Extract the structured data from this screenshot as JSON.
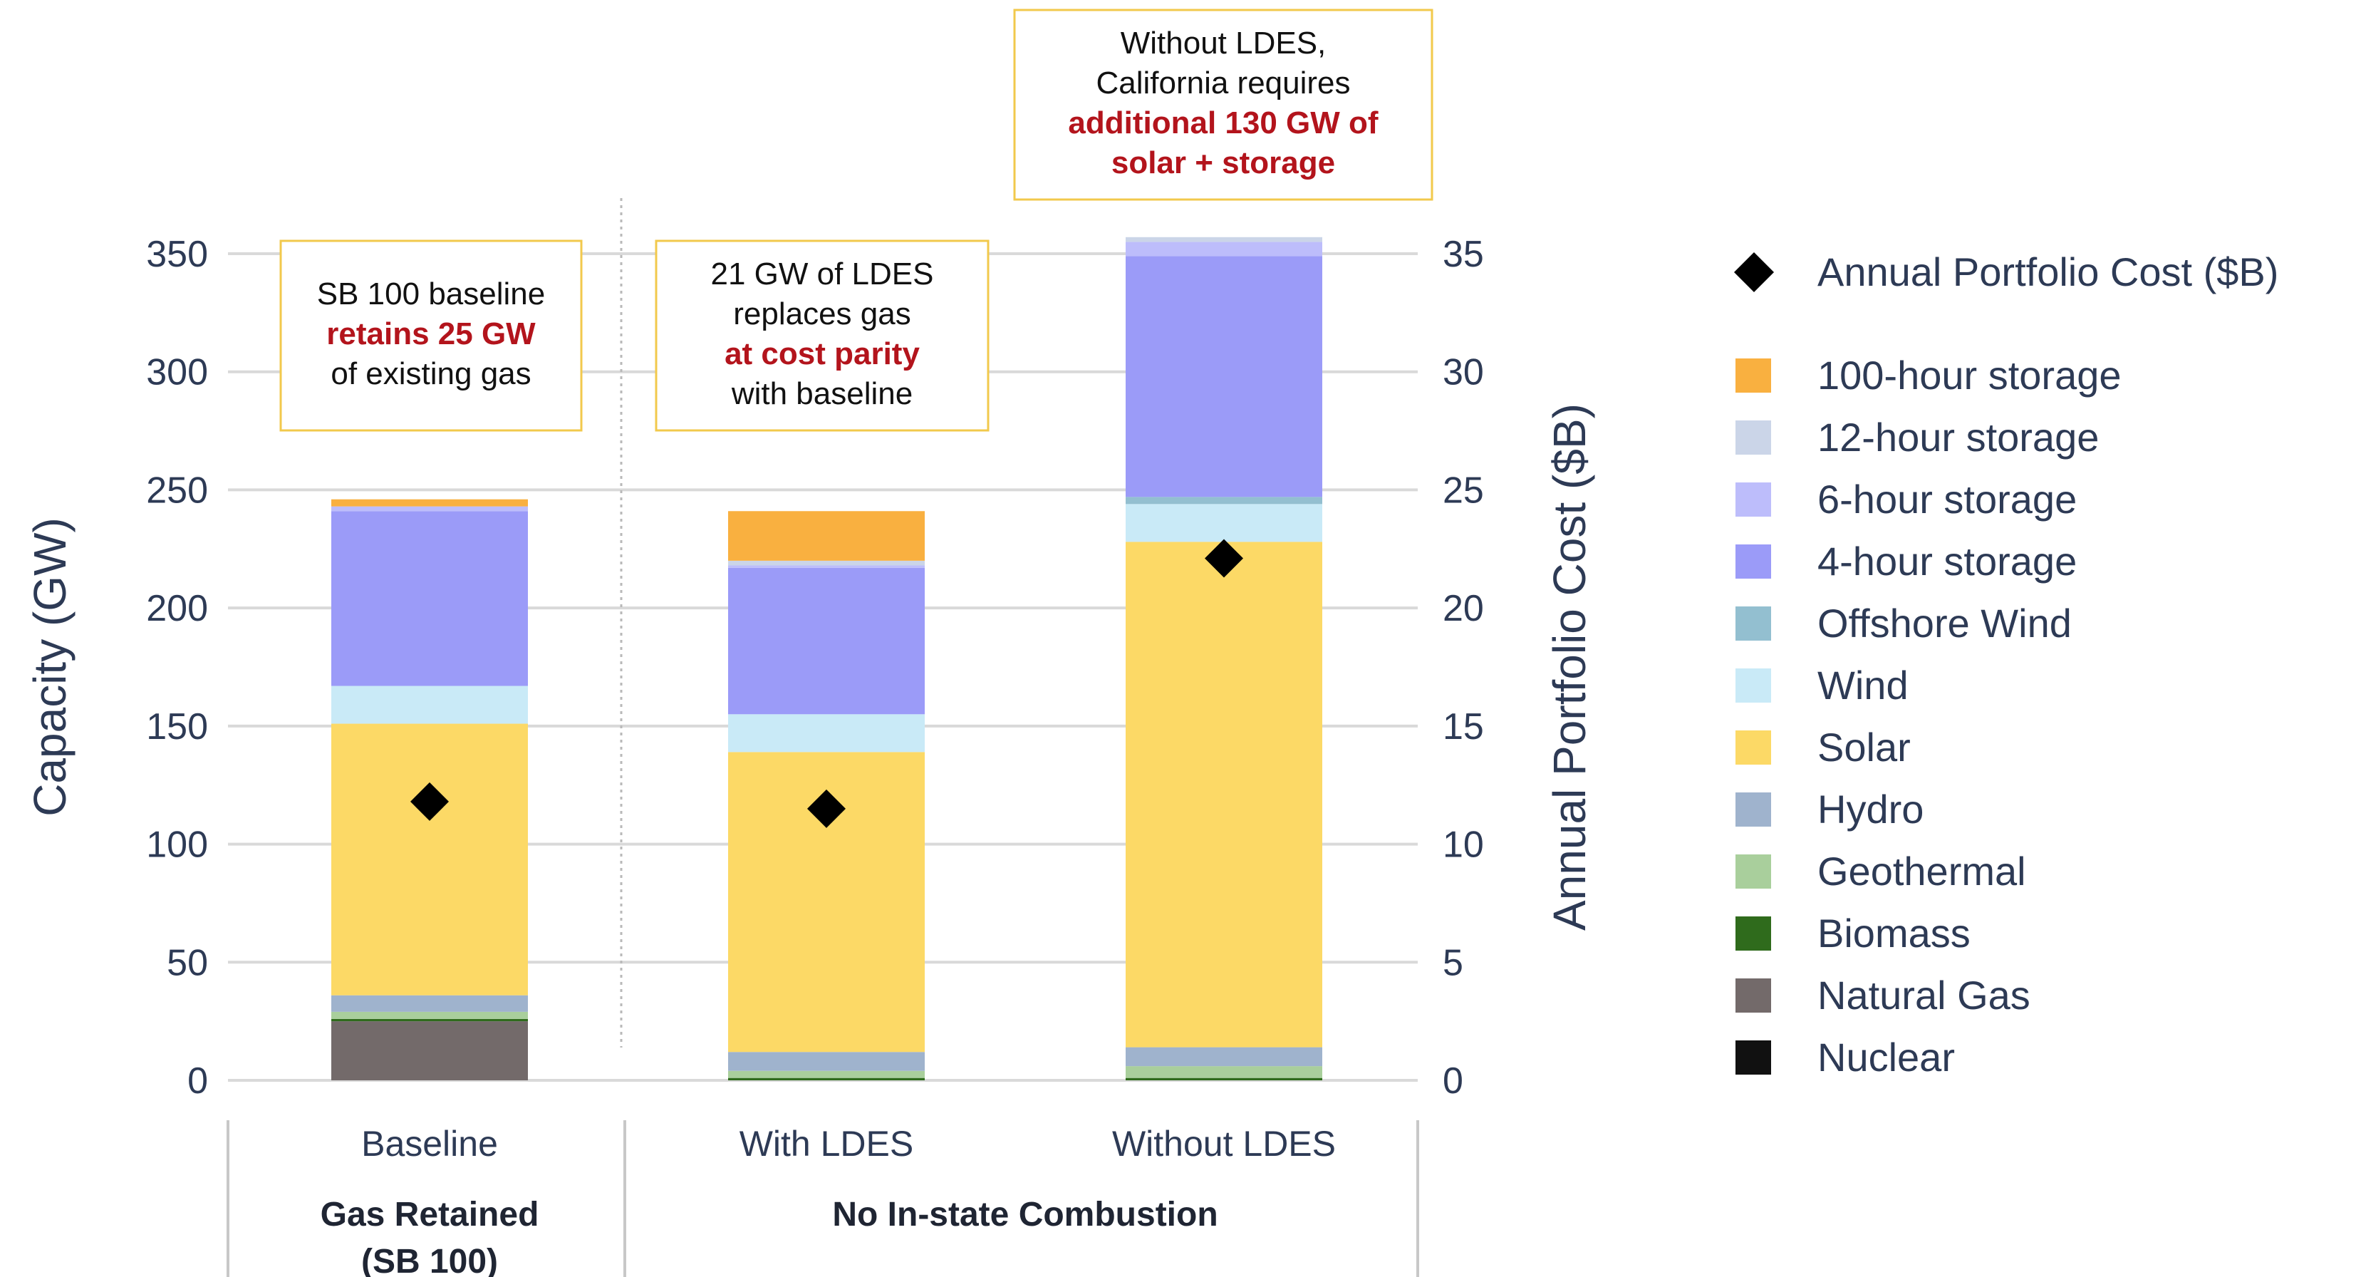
{
  "chart_data": {
    "type": "bar",
    "stacked": true,
    "categories": [
      "Baseline",
      "With LDES",
      "Without LDES"
    ],
    "category_groups": [
      {
        "label_lines": [
          "Gas Retained",
          "(SB 100)"
        ],
        "categories": [
          "Baseline"
        ]
      },
      {
        "label_lines": [
          "No In-state Combustion"
        ],
        "categories": [
          "With LDES",
          "Without LDES"
        ]
      }
    ],
    "series": [
      {
        "name": "Nuclear",
        "color": "#111111",
        "values": [
          0,
          0,
          0
        ]
      },
      {
        "name": "Natural Gas",
        "color": "#736a6a",
        "values": [
          25,
          0,
          0
        ]
      },
      {
        "name": "Biomass",
        "color": "#2f6b1c",
        "values": [
          1,
          1,
          1
        ]
      },
      {
        "name": "Geothermal",
        "color": "#a9cf9c",
        "values": [
          3,
          3,
          5
        ]
      },
      {
        "name": "Hydro",
        "color": "#9fb3cd",
        "values": [
          7,
          8,
          8
        ]
      },
      {
        "name": "Solar",
        "color": "#fcd966",
        "values": [
          115,
          127,
          214
        ]
      },
      {
        "name": "Wind",
        "color": "#c9eaf7",
        "values": [
          16,
          16,
          16
        ]
      },
      {
        "name": "Offshore Wind",
        "color": "#93bfd0",
        "values": [
          0,
          0,
          3
        ]
      },
      {
        "name": "4-hour storage",
        "color": "#9b9bf8",
        "values": [
          74,
          62,
          102
        ]
      },
      {
        "name": "6-hour storage",
        "color": "#bdbdfb",
        "values": [
          2,
          1,
          6
        ]
      },
      {
        "name": "12-hour storage",
        "color": "#cbd5e8",
        "values": [
          0,
          2,
          2
        ]
      },
      {
        "name": "100-hour storage",
        "color": "#f9b040",
        "values": [
          3,
          21,
          0
        ]
      }
    ],
    "secondary_series": {
      "name": "Annual Portfolio Cost ($B)",
      "marker": "diamond",
      "color": "#000000",
      "values": [
        11.8,
        11.5,
        22.1
      ]
    },
    "ylabel": "Capacity (GW)",
    "ylim": [
      0,
      350
    ],
    "yticks": [
      "0",
      "50",
      "100",
      "150",
      "200",
      "250",
      "300",
      "350"
    ],
    "y2label": "Annual Portfolio Cost ($B)",
    "y2lim": [
      0,
      35
    ],
    "y2ticks": [
      "0",
      "5",
      "10",
      "15",
      "20",
      "25",
      "30",
      "35"
    ],
    "grid": true,
    "legend_position": "right",
    "legend_order": [
      "Annual Portfolio Cost ($B)",
      "100-hour storage",
      "12-hour storage",
      "6-hour storage",
      "4-hour storage",
      "Offshore Wind",
      "Wind",
      "Solar",
      "Hydro",
      "Geothermal",
      "Biomass",
      "Natural Gas",
      "Nuclear"
    ],
    "annotations": [
      {
        "category": "Baseline",
        "lines": [
          [
            {
              "text": "SB 100 baseline",
              "highlight": false
            }
          ],
          [
            {
              "text": "retains 25 GW",
              "highlight": true
            }
          ],
          [
            {
              "text": "of existing gas",
              "highlight": false
            }
          ]
        ]
      },
      {
        "category": "With LDES",
        "lines": [
          [
            {
              "text": "21 GW of LDES",
              "highlight": false
            }
          ],
          [
            {
              "text": "replaces gas",
              "highlight": false
            }
          ],
          [
            {
              "text": "at cost parity",
              "highlight": true
            }
          ],
          [
            {
              "text": "with baseline",
              "highlight": false
            }
          ]
        ]
      },
      {
        "category": "Without LDES",
        "lines": [
          [
            {
              "text": "Without LDES,",
              "highlight": false
            }
          ],
          [
            {
              "text": "California requires",
              "highlight": false
            }
          ],
          [
            {
              "text": "additional 130 GW of",
              "highlight": true
            }
          ],
          [
            {
              "text": "solar + storage",
              "highlight": true
            }
          ]
        ]
      }
    ]
  }
}
